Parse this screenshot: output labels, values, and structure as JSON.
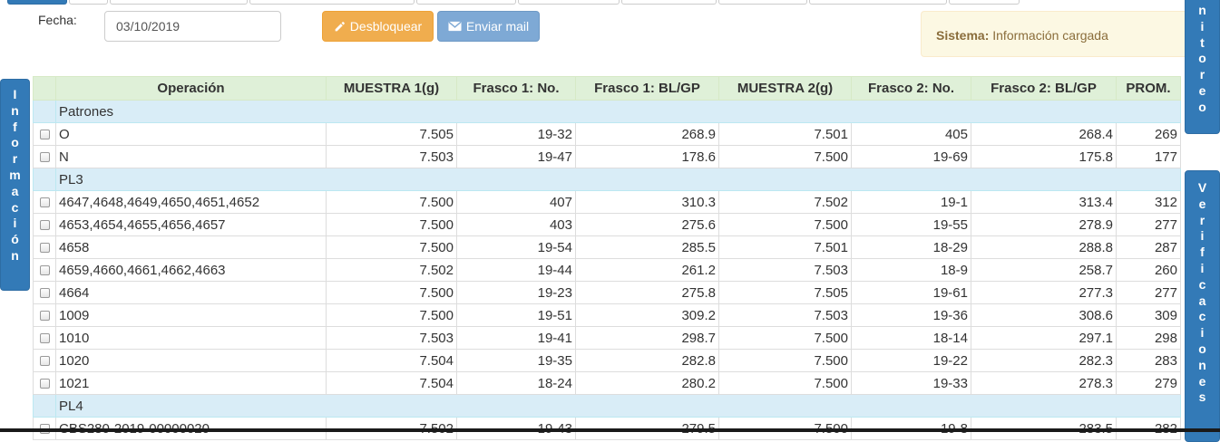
{
  "form": {
    "date_label": "Fecha:",
    "date_value": "03/10/2019"
  },
  "buttons": {
    "unlock": "Desbloquear",
    "send_mail": "Enviar mail"
  },
  "alert": {
    "prefix": "Sistema:",
    "message": "Información cargada"
  },
  "side_tabs": {
    "info": "Información",
    "monitoreo": "nitoreo",
    "verificaciones": "Verificaciones"
  },
  "table": {
    "columns": [
      "Operación",
      "MUESTRA 1(g)",
      "Frasco 1: No.",
      "Frasco 1: BL/GP",
      "MUESTRA 2(g)",
      "Frasco 2: No.",
      "Frasco 2: BL/GP",
      "PROM."
    ],
    "groups": [
      {
        "name": "Patrones",
        "rows": [
          [
            "O",
            "7.505",
            "19-32",
            "268.9",
            "7.501",
            "405",
            "268.4",
            "269"
          ],
          [
            "N",
            "7.503",
            "19-47",
            "178.6",
            "7.500",
            "19-69",
            "175.8",
            "177"
          ]
        ]
      },
      {
        "name": "PL3",
        "rows": [
          [
            "4647,4648,4649,4650,4651,4652",
            "7.500",
            "407",
            "310.3",
            "7.502",
            "19-1",
            "313.4",
            "312"
          ],
          [
            "4653,4654,4655,4656,4657",
            "7.500",
            "403",
            "275.6",
            "7.500",
            "19-55",
            "278.9",
            "277"
          ],
          [
            "4658",
            "7.500",
            "19-54",
            "285.5",
            "7.501",
            "18-29",
            "288.8",
            "287"
          ],
          [
            "4659,4660,4661,4662,4663",
            "7.502",
            "19-44",
            "261.2",
            "7.503",
            "18-9",
            "258.7",
            "260"
          ],
          [
            "4664",
            "7.500",
            "19-23",
            "275.8",
            "7.505",
            "19-61",
            "277.3",
            "277"
          ],
          [
            "1009",
            "7.500",
            "19-51",
            "309.2",
            "7.503",
            "19-36",
            "308.6",
            "309"
          ],
          [
            "1010",
            "7.503",
            "19-41",
            "298.7",
            "7.500",
            "18-14",
            "297.1",
            "298"
          ],
          [
            "1020",
            "7.504",
            "19-35",
            "282.8",
            "7.500",
            "19-22",
            "282.3",
            "283"
          ],
          [
            "1021",
            "7.504",
            "18-24",
            "280.2",
            "7.500",
            "19-33",
            "278.3",
            "279"
          ]
        ]
      },
      {
        "name": "PL4",
        "rows": [
          [
            "CBS280-2019-00000020",
            "7.502",
            "19-43",
            "279.5",
            "7.500",
            "19-8",
            "283.5",
            "282"
          ]
        ]
      }
    ]
  },
  "colors": {
    "primary": "#337ab7",
    "warning": "#f0ad4e",
    "info_button": "#7ea9d5",
    "header_bg": "#dff0d8",
    "group_bg": "#d9edf7",
    "alert_bg": "#fcf8e3"
  }
}
